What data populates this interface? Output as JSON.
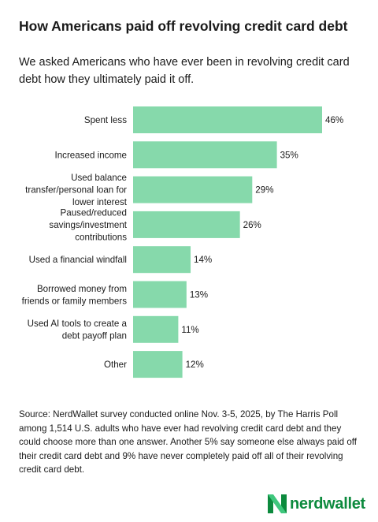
{
  "title": "How Americans paid off revolving credit card debt",
  "subtitle": "We asked Americans who have ever been in revolving credit card debt how they ultimately paid it off.",
  "source": "Source: NerdWallet survey conducted online Nov. 3-5, 2025, by The Harris Poll among 1,514 U.S. adults who have ever had revolving credit card debt and they could choose more than one answer. Another 5% say someone else always paid off their credit card debt and 9% have never completely paid off all of their revolving credit card debt.",
  "brand": {
    "name": "nerdwallet",
    "logo_icon": "nerdwallet-n-logo-icon",
    "color": "#0c8a3d"
  },
  "chart_data": {
    "type": "bar",
    "orientation": "horizontal",
    "title": "",
    "xlabel": "",
    "ylabel": "",
    "bar_color": "#86d9ab",
    "value_suffix": "%",
    "xlim": [
      0,
      46
    ],
    "grid": false,
    "legend": "none",
    "categories": [
      [
        "Spent less"
      ],
      [
        "Increased income"
      ],
      [
        "Used balance",
        "transfer/personal loan for",
        "lower interest"
      ],
      [
        "Paused/reduced",
        "savings/investment",
        "contributions"
      ],
      [
        "Used a financial windfall"
      ],
      [
        "Borrowed money from",
        "friends or family members"
      ],
      [
        "Used AI tools to create a",
        "debt payoff plan"
      ],
      [
        "Other"
      ]
    ],
    "values": [
      46,
      35,
      29,
      26,
      14,
      13,
      11,
      12
    ],
    "value_labels": [
      "46%",
      "35%",
      "29%",
      "26%",
      "14%",
      "13%",
      "11%",
      "12%"
    ]
  }
}
